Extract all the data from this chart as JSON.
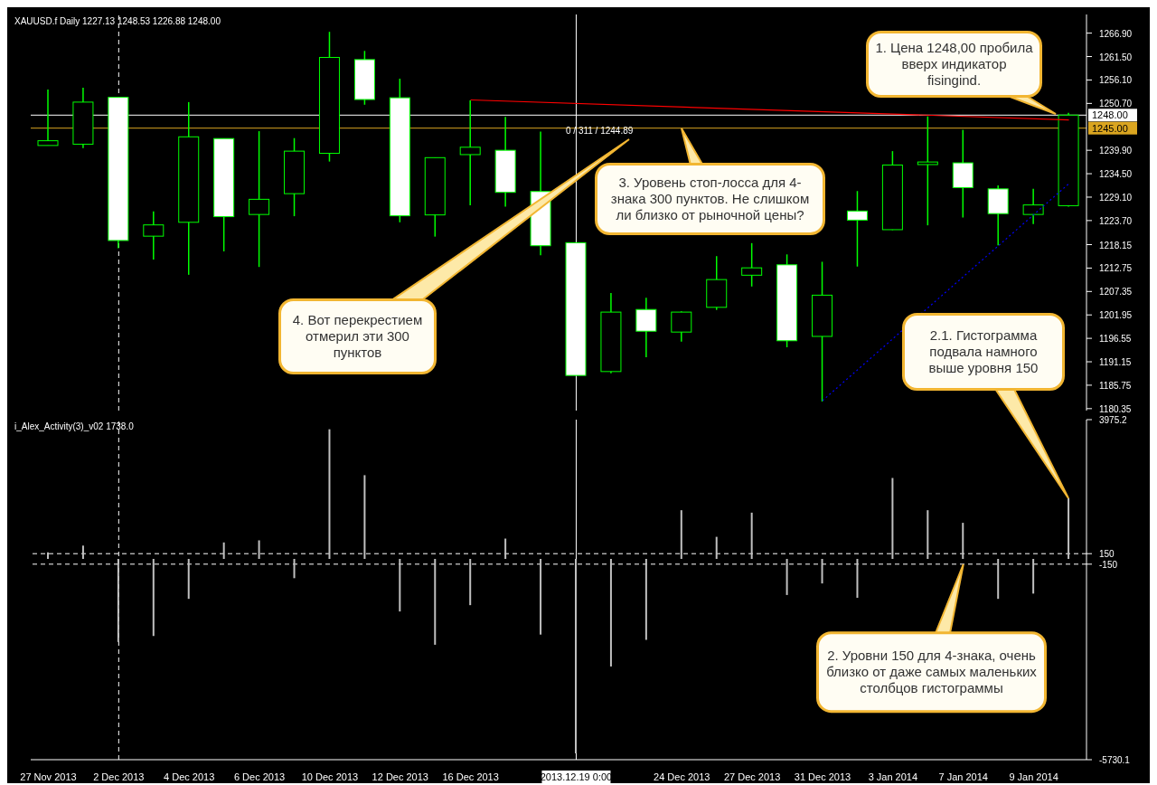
{
  "chart_data": [
    {
      "type": "candlestick",
      "title": "XAUUSD.f Daily 1227.13 1248.53 1226.88 1248.00",
      "categories": [
        "27 Nov 2013",
        null,
        "2 Dec 2013",
        null,
        "4 Dec 2013",
        null,
        "6 Dec 2013",
        null,
        "10 Dec 2013",
        null,
        "12 Dec 2013",
        null,
        "16 Dec 2013",
        null,
        null,
        "2013.12.19 0:00",
        null,
        null,
        "24 Dec 2013",
        null,
        "27 Dec 2013",
        null,
        "31 Dec 2013",
        null,
        "3 Jan 2014",
        null,
        "7 Jan 2014",
        null,
        "9 Jan 2014",
        null
      ],
      "ohlc": [
        [
          1241.0,
          1253.9,
          1241.0,
          1242.1
        ],
        [
          1241.3,
          1254.3,
          1240.4,
          1251.0
        ],
        [
          1252.1,
          1252.1,
          1217.3,
          1219.1
        ],
        [
          1220.1,
          1225.8,
          1214.7,
          1222.7
        ],
        [
          1223.3,
          1251.0,
          1211.2,
          1243.0
        ],
        [
          1242.6,
          1242.6,
          1216.6,
          1224.6
        ],
        [
          1225.1,
          1244.3,
          1213.0,
          1228.6
        ],
        [
          1229.9,
          1242.7,
          1224.7,
          1239.7
        ],
        [
          1239.2,
          1267.2,
          1237.3,
          1261.3
        ],
        [
          1260.8,
          1262.8,
          1250.4,
          1251.6
        ],
        [
          1252.0,
          1256.4,
          1223.3,
          1224.8
        ],
        [
          1225.0,
          1238.2,
          1220.0,
          1238.2
        ],
        [
          1238.9,
          1251.4,
          1227.2,
          1240.6
        ],
        [
          1239.9,
          1247.6,
          1226.9,
          1230.2
        ],
        [
          1230.4,
          1244.2,
          1215.7,
          1217.9
        ],
        [
          1218.6,
          1218.6,
          1188.0,
          1188.0
        ],
        [
          1188.9,
          1207.0,
          1188.5,
          1202.6
        ],
        [
          1203.2,
          1205.9,
          1192.2,
          1198.2
        ],
        [
          1198.0,
          1202.8,
          1195.8,
          1202.6
        ],
        [
          1203.7,
          1215.5,
          1203.1,
          1210.1
        ],
        [
          1211.1,
          1218.5,
          1208.5,
          1212.8
        ],
        [
          1213.5,
          1215.9,
          1194.5,
          1196.0
        ],
        [
          1197.0,
          1214.2,
          1182.0,
          1206.5
        ],
        [
          1225.9,
          1230.5,
          1213.1,
          1223.8
        ],
        [
          1221.6,
          1239.7,
          1221.5,
          1236.5
        ],
        [
          1236.6,
          1247.7,
          1222.6,
          1237.2
        ],
        [
          1237.0,
          1244.6,
          1224.4,
          1231.3
        ],
        [
          1231.0,
          1231.8,
          1218.0,
          1225.3
        ],
        [
          1225.1,
          1231.0,
          1222.9,
          1227.3
        ],
        [
          1227.13,
          1248.53,
          1226.88,
          1248.0
        ]
      ],
      "color": "#00ff00",
      "colors": [
        "#000000",
        "#000000",
        "#ffffff",
        "#000000",
        "#000000",
        "#ffffff",
        "#000000",
        "#000000",
        "#000000",
        "#ffffff",
        "#ffffff",
        "#000000",
        "#000000",
        "#ffffff",
        "#ffffff",
        "#ffffff",
        "#000000",
        "#ffffff",
        "#000000",
        "#000000",
        "#000000",
        "#ffffff",
        "#000000",
        "#ffffff",
        "#000000",
        "#000000",
        "#ffffff",
        "#ffffff",
        "#000000",
        "#000000"
      ],
      "series": [
        {
          "type": "line",
          "color": "#ff0000",
          "values": [
            null,
            null,
            null,
            null,
            null,
            null,
            null,
            null,
            null,
            null,
            null,
            null,
            1251.5,
            null,
            null,
            null,
            null,
            null,
            null,
            null,
            null,
            null,
            null,
            null,
            null,
            null,
            null,
            null,
            null,
            1246.9
          ]
        },
        {
          "type": "line",
          "color": "#0000ff",
          "line_style": "dotted",
          "values": [
            null,
            null,
            null,
            null,
            null,
            null,
            null,
            null,
            null,
            null,
            null,
            null,
            null,
            null,
            null,
            null,
            null,
            null,
            null,
            null,
            null,
            null,
            1182.2,
            null,
            null,
            null,
            null,
            null,
            null,
            1232.2
          ]
        }
      ],
      "ylim": [
        1179.9,
        1271.2
      ],
      "yticks": [
        {
          "value": 1266.9,
          "label": "1266.90"
        },
        {
          "value": 1261.5,
          "label": "1261.50"
        },
        {
          "value": 1256.1,
          "label": "1256.10"
        },
        {
          "value": 1250.7,
          "label": "1250.70"
        },
        {
          "value": 1239.9,
          "label": "1239.90"
        },
        {
          "value": 1234.5,
          "label": "1234.50"
        },
        {
          "value": 1229.1,
          "label": "1229.10"
        },
        {
          "value": 1223.7,
          "label": "1223.70"
        },
        1218.15,
        1212.75,
        1207.35,
        1201.95,
        1196.55,
        1191.15,
        1185.75,
        1180.35
      ],
      "tick_labels": "y",
      "ref_lines": [
        {
          "axis": "y",
          "value": 1248.0,
          "label": "1248.00",
          "color": "#ffffff"
        },
        {
          "axis": "y",
          "value": 1245.0,
          "label": "1245.00",
          "color": "#daa520"
        },
        {
          "axis": "x",
          "value": "2 Dec 2013",
          "color": "#ffffff",
          "line_style": "dashed"
        },
        {
          "axis": "x",
          "value": "2013.12.19 0:00",
          "color": "#ffffff"
        }
      ],
      "annotations": [
        "1. Цена 1248,00 пробила вверх индикатор fisingind.",
        "3. Уровень стоп-лосса для 4-знака 300 пунктов. Не слишком ли близко от рыночной цены?",
        "4. Вот перекрестием отмерил эти 300 пунктов",
        "0 / 311 / 1244.89"
      ]
    },
    {
      "type": "bar",
      "title": "i_Alex_Activity(3)_v02 1738.0",
      "categories": [
        "27 Nov 2013",
        null,
        "2 Dec 2013",
        null,
        "4 Dec 2013",
        null,
        "6 Dec 2013",
        null,
        "10 Dec 2013",
        null,
        "12 Dec 2013",
        null,
        "16 Dec 2013",
        null,
        null,
        "2013.12.19 0:00",
        null,
        null,
        "24 Dec 2013",
        null,
        "27 Dec 2013",
        null,
        "31 Dec 2013",
        null,
        "3 Jan 2014",
        null,
        "7 Jan 2014",
        null,
        "9 Jan 2014",
        null
      ],
      "values": [
        190,
        380,
        -2370,
        -2200,
        -1140,
        470,
        530,
        -550,
        3700,
        2390,
        -1500,
        -2450,
        -1320,
        580,
        -2160,
        -5550,
        -3070,
        -2310,
        1390,
        630,
        1320,
        -1030,
        -700,
        -1110,
        2310,
        1390,
        1030,
        -1140,
        -990,
        1738
      ],
      "color": "#c0c0c0",
      "ylim": [
        -5730.1,
        3975.2
      ],
      "yticks": [
        3975.2,
        150,
        -150,
        -5730.1
      ],
      "ref_lines": [
        {
          "axis": "y",
          "value": 150,
          "color": "#ffffff",
          "line_style": "dashed"
        },
        {
          "axis": "y",
          "value": -150,
          "color": "#ffffff",
          "line_style": "dashed"
        },
        {
          "axis": "x",
          "value": "2 Dec 2013",
          "color": "#ffffff",
          "line_style": "dashed"
        },
        {
          "axis": "x",
          "value": "2013.12.19 0:00",
          "color": "#ffffff"
        }
      ],
      "annotations": [
        "2.1. Гистограмма подвала намного выше уровня 150",
        {
          "text": "2. Уровни 150 для 4-знака, очень близко от даже самых маленьких столбцов гистограммы",
          "x": "7 Jan 2014",
          "y": -150
        }
      ]
    }
  ]
}
